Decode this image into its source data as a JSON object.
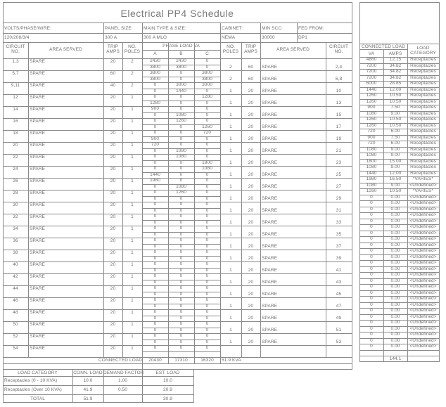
{
  "title": "Electrical  PP4  Schedule",
  "info": [
    {
      "label": "VOLTS/PHASE/WIRE:",
      "value": "120/208/3/4"
    },
    {
      "label": "PANEL SIZE:",
      "value": "300 A"
    },
    {
      "label": "MAIN TYPE & SIZE:",
      "value": "300 A MLO"
    },
    {
      "label": "CABINET:",
      "value": "NEMA"
    },
    {
      "label": "MIN SCC:",
      "value": "30000"
    },
    {
      "label": "FED FROM:",
      "value": "DP1"
    }
  ],
  "headers": {
    "circuit_no": [
      "CIRCUIT",
      "NO."
    ],
    "area_served": "AREA SERVED",
    "trip_amps": [
      "TRIP",
      "AMPS"
    ],
    "no_poles": [
      "NO.",
      "POLES"
    ],
    "phase_load": "PHASE LOAD VA",
    "phases": [
      "A",
      "B",
      "C"
    ],
    "connected_load": "CONNECTED LOAD",
    "va": "VA",
    "amps": "AMPS",
    "load_category": [
      "LOAD",
      "CATEGORY"
    ]
  },
  "rows": [
    {
      "lc": "1,3",
      "la": "SPARE",
      "lt": "20",
      "lp": "2",
      "p1": [
        "2430",
        "2430",
        "0"
      ],
      "p2": [
        "3800",
        "3800",
        "0"
      ],
      "rp": "2",
      "rt": "60",
      "ra": "SPARE",
      "rc": "2,4"
    },
    {
      "lc": "5,7",
      "la": "SPARE",
      "lt": "60",
      "lp": "2",
      "p1": [
        "3800",
        "0",
        "3800"
      ],
      "p2": [
        "3800",
        "0",
        "3800"
      ],
      "rp": "2",
      "rt": "60",
      "ra": "SPARE",
      "rc": "6,8"
    },
    {
      "lc": "9,11",
      "la": "SPARE",
      "lt": "40",
      "lp": "2",
      "p1": [
        "0",
        "3000",
        "3000"
      ],
      "p2": [
        "0",
        "1440",
        "0"
      ],
      "rp": "1",
      "rt": "20",
      "ra": "SPARE",
      "rc": "10"
    },
    {
      "lc": "12",
      "la": "SPARE",
      "lt": "20",
      "lp": "1",
      "p1": [
        "0",
        "0",
        "1280"
      ],
      "p2": [
        "1280",
        "0",
        "0"
      ],
      "rp": "1",
      "rt": "20",
      "ra": "SPARE",
      "rc": "13"
    },
    {
      "lc": "14",
      "la": "SPARE",
      "lt": "20",
      "lp": "1",
      "p1": [
        "900",
        "0",
        "0"
      ],
      "p2": [
        "0",
        "1080",
        "0"
      ],
      "rp": "1",
      "rt": "20",
      "ra": "SPARE",
      "rc": "15"
    },
    {
      "lc": "16",
      "la": "SPARE",
      "lt": "20",
      "lp": "1",
      "p1": [
        "0",
        "1260",
        "0"
      ],
      "p2": [
        "0",
        "0",
        "1260"
      ],
      "rp": "1",
      "rt": "20",
      "ra": "SPARE",
      "rc": "17"
    },
    {
      "lc": "18",
      "la": "SPARE",
      "lt": "20",
      "lp": "1",
      "p1": [
        "0",
        "0",
        "720"
      ],
      "p2": [
        "900",
        "0",
        "0"
      ],
      "rp": "1",
      "rt": "20",
      "ra": "SPARE",
      "rc": "19"
    },
    {
      "lc": "20",
      "la": "SPARE",
      "lt": "20",
      "lp": "1",
      "p1": [
        "720",
        "0",
        "0"
      ],
      "p2": [
        "0",
        "1080",
        "0"
      ],
      "rp": "1",
      "rt": "20",
      "ra": "SPARE",
      "rc": "21"
    },
    {
      "lc": "22",
      "la": "SPARE",
      "lt": "20",
      "lp": "1",
      "p1": [
        "0",
        "1080",
        "0"
      ],
      "p2": [
        "0",
        "0",
        "1800"
      ],
      "rp": "1",
      "rt": "20",
      "ra": "SPARE",
      "rc": "23"
    },
    {
      "lc": "24",
      "la": "SPARE",
      "lt": "20",
      "lp": "1",
      "p1": [
        "0",
        "0",
        "1080"
      ],
      "p2": [
        "1440",
        "0",
        "0"
      ],
      "rp": "1",
      "rt": "20",
      "ra": "SPARE",
      "rc": "25"
    },
    {
      "lc": "26",
      "la": "SPARE",
      "lt": "20",
      "lp": "1",
      "p1": [
        "1980",
        "0",
        "0"
      ],
      "p2": [
        "0",
        "1080",
        "0"
      ],
      "rp": "1",
      "rt": "20",
      "ra": "SPARE",
      "rc": "27"
    },
    {
      "lc": "28",
      "la": "SPARE",
      "lt": "20",
      "lp": "1",
      "p1": [
        "0",
        "1260",
        "0"
      ],
      "p2": [
        "0",
        "0",
        "0"
      ],
      "rp": "1",
      "rt": "20",
      "ra": "SPARE",
      "rc": "29"
    },
    {
      "lc": "30",
      "la": "SPARE",
      "lt": "20",
      "lp": "1",
      "p1": [
        "0",
        "0",
        "0"
      ],
      "p2": [
        "0",
        "0",
        "0"
      ],
      "rp": "1",
      "rt": "20",
      "ra": "SPARE",
      "rc": "31"
    },
    {
      "lc": "32",
      "la": "SPARE",
      "lt": "20",
      "lp": "1",
      "p1": [
        "0",
        "0",
        "0"
      ],
      "p2": [
        "0",
        "0",
        "0"
      ],
      "rp": "1",
      "rt": "20",
      "ra": "SPARE",
      "rc": "33"
    },
    {
      "lc": "34",
      "la": "SPARE",
      "lt": "20",
      "lp": "1",
      "p1": [
        "0",
        "0",
        "0"
      ],
      "p2": [
        "0",
        "0",
        "0"
      ],
      "rp": "1",
      "rt": "20",
      "ra": "SPARE",
      "rc": "35"
    },
    {
      "lc": "36",
      "la": "SPARE",
      "lt": "20",
      "lp": "1",
      "p1": [
        "0",
        "0",
        "0"
      ],
      "p2": [
        "0",
        "0",
        "0"
      ],
      "rp": "1",
      "rt": "20",
      "ra": "SPARE",
      "rc": "37"
    },
    {
      "lc": "38",
      "la": "SPARE",
      "lt": "20",
      "lp": "1",
      "p1": [
        "0",
        "0",
        "0"
      ],
      "p2": [
        "0",
        "0",
        "0"
      ],
      "rp": "1",
      "rt": "20",
      "ra": "SPARE",
      "rc": "39"
    },
    {
      "lc": "40",
      "la": "SPARE",
      "lt": "20",
      "lp": "1",
      "p1": [
        "0",
        "0",
        "0"
      ],
      "p2": [
        "0",
        "0",
        "0"
      ],
      "rp": "1",
      "rt": "20",
      "ra": "SPARE",
      "rc": "41"
    },
    {
      "lc": "42",
      "la": "SPARE",
      "lt": "20",
      "lp": "1",
      "p1": [
        "0",
        "0",
        "0"
      ],
      "p2": [
        "0",
        "0",
        "0"
      ],
      "rp": "1",
      "rt": "20",
      "ra": "SPARE",
      "rc": "43"
    },
    {
      "lc": "44",
      "la": "SPARE",
      "lt": "20",
      "lp": "1",
      "p1": [
        "0",
        "0",
        "0"
      ],
      "p2": [
        "0",
        "0",
        "0"
      ],
      "rp": "1",
      "rt": "20",
      "ra": "SPARE",
      "rc": "45"
    },
    {
      "lc": "46",
      "la": "SPARE",
      "lt": "20",
      "lp": "1",
      "p1": [
        "0",
        "0",
        "0"
      ],
      "p2": [
        "0",
        "0",
        "0"
      ],
      "rp": "1",
      "rt": "20",
      "ra": "SPARE",
      "rc": "47"
    },
    {
      "lc": "48",
      "la": "SPARE",
      "lt": "20",
      "lp": "1",
      "p1": [
        "0",
        "0",
        "0"
      ],
      "p2": [
        "0",
        "0",
        "0"
      ],
      "rp": "1",
      "rt": "20",
      "ra": "SPARE",
      "rc": "49"
    },
    {
      "lc": "50",
      "la": "SPARE",
      "lt": "20",
      "lp": "1",
      "p1": [
        "0",
        "0",
        "0"
      ],
      "p2": [
        "0",
        "0",
        "0"
      ],
      "rp": "1",
      "rt": "20",
      "ra": "SPARE",
      "rc": "51"
    },
    {
      "lc": "52",
      "la": "SPARE",
      "lt": "20",
      "lp": "1",
      "p1": [
        "0",
        "0",
        "0"
      ],
      "p2": [
        "0",
        "0",
        "0"
      ],
      "rp": "1",
      "rt": "20",
      "ra": "SPARE",
      "rc": "53"
    },
    {
      "lc": "54",
      "la": "SPARE",
      "lt": "20",
      "lp": "1",
      "p1": [
        "0",
        "0",
        "0"
      ],
      "p2": null,
      "rp": "",
      "rt": "",
      "ra": "",
      "rc": ""
    }
  ],
  "connected_load_row": {
    "label": "CONNECTED LOAD",
    "a": "20430",
    "b": "17310",
    "c": "16320",
    "total": "51.9 KVA"
  },
  "connected_loads": [
    [
      "4860",
      "12.15",
      "Receptacles"
    ],
    [
      "7200",
      "34.82",
      "Receptacles"
    ],
    [
      "7200",
      "34.82",
      "Receptacles"
    ],
    [
      "7200",
      "34.82",
      "Receptacles"
    ],
    [
      "6000",
      "28.85",
      "Receptacles"
    ],
    [
      "1440",
      "12.00",
      "Receptacles"
    ],
    [
      "1260",
      "10.50",
      "Receptacles"
    ],
    [
      "1260",
      "10.50",
      "Receptacles"
    ],
    [
      "900",
      "7.50",
      "Receptacles"
    ],
    [
      "1080",
      "9.00",
      "Receptacles"
    ],
    [
      "1260",
      "10.50",
      "Receptacles"
    ],
    [
      "1260",
      "10.50",
      "Receptacles"
    ],
    [
      "720",
      "6.00",
      "Receptacles"
    ],
    [
      "900",
      "7.50",
      "Receptacles"
    ],
    [
      "720",
      "6.00",
      "Receptacles"
    ],
    [
      "1080",
      "9.00",
      "Receptacles"
    ],
    [
      "1080",
      "9.00",
      "Receptacles"
    ],
    [
      "1800",
      "15.00",
      "Receptacles"
    ],
    [
      "1080",
      "9.00",
      "Receptacles"
    ],
    [
      "1440",
      "12.00",
      "Receptacles"
    ],
    [
      "1980",
      "16.50",
      "*VARIES*"
    ],
    [
      "1080",
      "9.00",
      "<Undefined>"
    ],
    [
      "1260",
      "10.50",
      "*VARIES*"
    ],
    [
      "0",
      "0.00",
      "<Undefined>"
    ],
    [
      "0",
      "0.00",
      "<Undefined>"
    ],
    [
      "0",
      "0.00",
      "<Undefined>"
    ],
    [
      "0",
      "0.00",
      "<Undefined>"
    ],
    [
      "0",
      "0.00",
      "<Undefined>"
    ],
    [
      "0",
      "0.00",
      "<Undefined>"
    ],
    [
      "0",
      "0.00",
      "<Undefined>"
    ],
    [
      "0",
      "0.00",
      "<Undefined>"
    ],
    [
      "0",
      "0.00",
      "<Undefined>"
    ],
    [
      "0",
      "0.00",
      "<Undefined>"
    ],
    [
      "0",
      "0.00",
      "<Undefined>"
    ],
    [
      "0",
      "0.00",
      "<Undefined>"
    ],
    [
      "0",
      "0.00",
      "<Undefined>"
    ],
    [
      "0",
      "0.00",
      "<Undefined>"
    ],
    [
      "0",
      "0.00",
      "<Undefined>"
    ],
    [
      "0",
      "0.00",
      "<Undefined>"
    ],
    [
      "0",
      "0.00",
      "<Undefined>"
    ],
    [
      "0",
      "0.00",
      "<Undefined>"
    ],
    [
      "0",
      "0.00",
      "<Undefined>"
    ],
    [
      "0",
      "0.00",
      "<Undefined>"
    ],
    [
      "0",
      "0.00",
      "<Undefined>"
    ],
    [
      "0",
      "0.00",
      "<Undefined>"
    ],
    [
      "0",
      "0.00",
      "<Undefined>"
    ],
    [
      "0",
      "0.00",
      "<Undefined>"
    ],
    [
      "0",
      "0.00",
      "<Undefined>"
    ],
    [
      "0",
      "0.00",
      "<Undefined>"
    ]
  ],
  "connected_amps_total": "144.1",
  "summary": {
    "headers": [
      "LOAD CATEGORY",
      "CONN. LOAD",
      "DEMAND FACTOR",
      "EST. LOAD"
    ],
    "rows": [
      [
        "Receptacles (0 - 10 KVA)",
        "10.0",
        "1.00",
        "10.0"
      ],
      [
        "Receptacles (Over 10 KVA)",
        "41.9",
        "0.50",
        "20.9"
      ]
    ],
    "total": [
      "TOTAL",
      "51.9",
      "",
      "30.9"
    ]
  }
}
